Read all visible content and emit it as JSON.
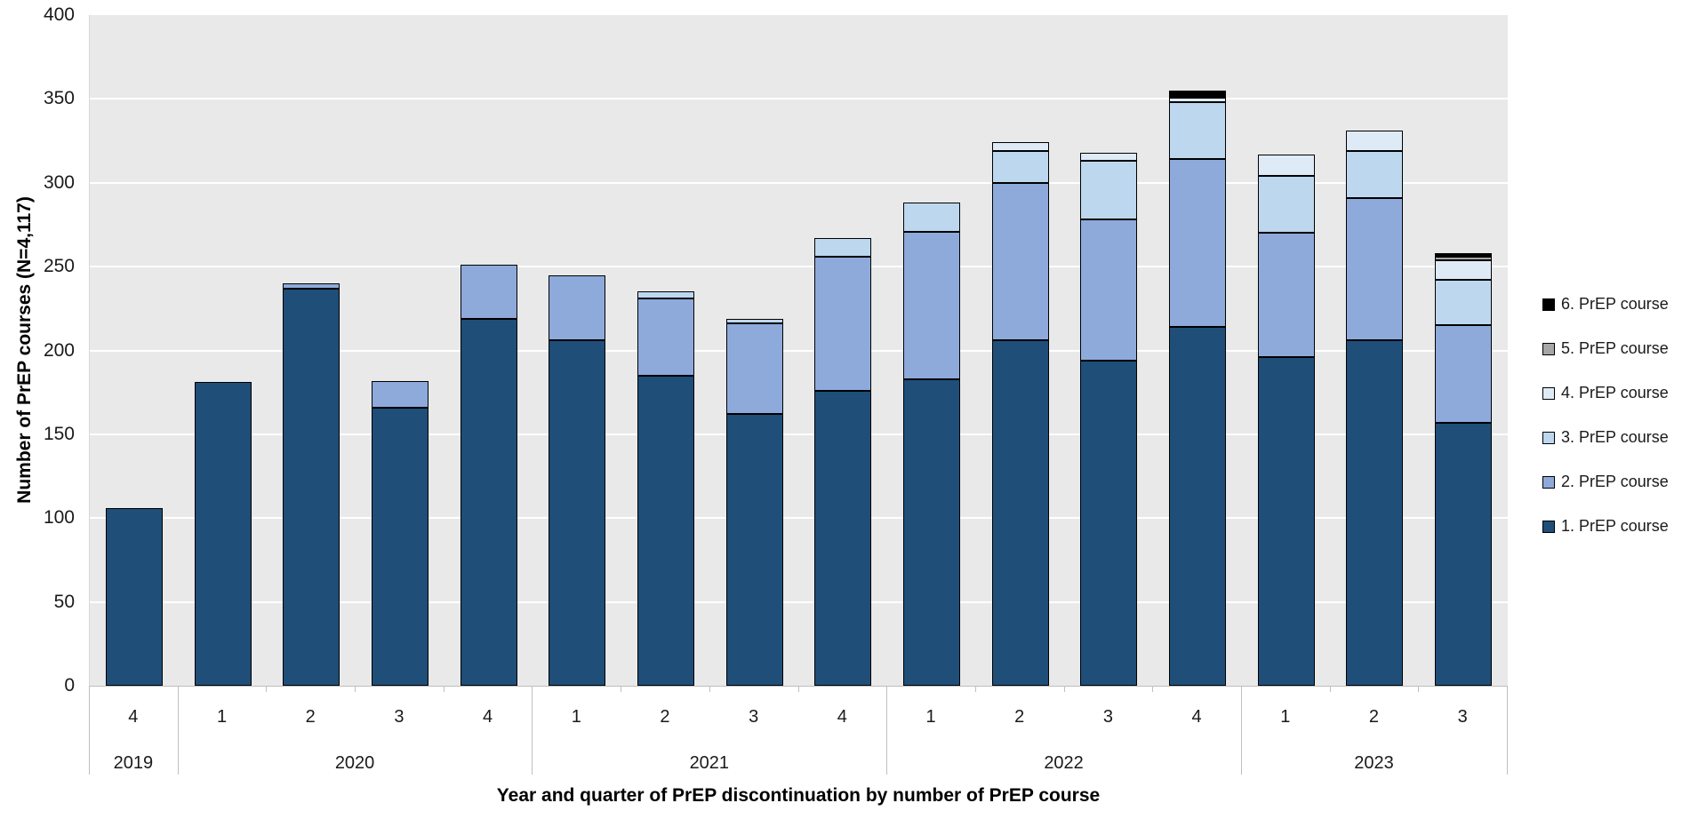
{
  "chart_data": {
    "type": "bar",
    "stacked": true,
    "xlabel": "Year and quarter of PrEP discontinuation by number of PrEP course",
    "ylabel": "Number of PrEP courses (N=4,117)",
    "ylim": [
      0,
      400
    ],
    "ytick_step": 50,
    "grid": true,
    "legend_position": "right",
    "plot_background": "#E9E9E9",
    "gridline_color": "#FFFFFF",
    "groups": [
      {
        "year": "2019",
        "quarters": [
          "4"
        ]
      },
      {
        "year": "2020",
        "quarters": [
          "1",
          "2",
          "3",
          "4"
        ]
      },
      {
        "year": "2021",
        "quarters": [
          "1",
          "2",
          "3",
          "4"
        ]
      },
      {
        "year": "2022",
        "quarters": [
          "1",
          "2",
          "3",
          "4"
        ]
      },
      {
        "year": "2023",
        "quarters": [
          "1",
          "2",
          "3"
        ]
      }
    ],
    "series": [
      {
        "name": "1. PrEP course",
        "color": "#1F4E79",
        "values": [
          106,
          181,
          237,
          166,
          219,
          206,
          185,
          162,
          176,
          183,
          206,
          194,
          214,
          196,
          206,
          157
        ]
      },
      {
        "name": "2. PrEP course",
        "color": "#8EAADB",
        "values": [
          0,
          0,
          3,
          16,
          32,
          39,
          46,
          54,
          80,
          88,
          94,
          84,
          100,
          74,
          85,
          58
        ]
      },
      {
        "name": "3. PrEP course",
        "color": "#BDD7EE",
        "values": [
          0,
          0,
          0,
          0,
          0,
          0,
          4,
          3,
          11,
          17,
          19,
          35,
          34,
          34,
          28,
          27
        ]
      },
      {
        "name": "4. PrEP course",
        "color": "#DEEBF7",
        "values": [
          0,
          0,
          0,
          0,
          0,
          0,
          0,
          0,
          0,
          0,
          5,
          5,
          3,
          13,
          12,
          12
        ]
      },
      {
        "name": "5. PrEP course",
        "color": "#A6A6A6",
        "values": [
          0,
          0,
          0,
          0,
          0,
          0,
          0,
          0,
          0,
          0,
          0,
          0,
          0,
          0,
          0,
          2
        ]
      },
      {
        "name": "6. PrEP course",
        "color": "#000000",
        "values": [
          0,
          0,
          0,
          0,
          0,
          0,
          0,
          0,
          0,
          0,
          0,
          0,
          4,
          0,
          0,
          2
        ]
      }
    ],
    "legend": [
      "6. PrEP course",
      "5. PrEP course",
      "4. PrEP course",
      "3. PrEP course",
      "2. PrEP course",
      "1. PrEP course"
    ],
    "totals": [
      106,
      181,
      240,
      182,
      251,
      245,
      235,
      219,
      267,
      288,
      324,
      318,
      355,
      317,
      331,
      258
    ],
    "grand_total": 4117
  }
}
